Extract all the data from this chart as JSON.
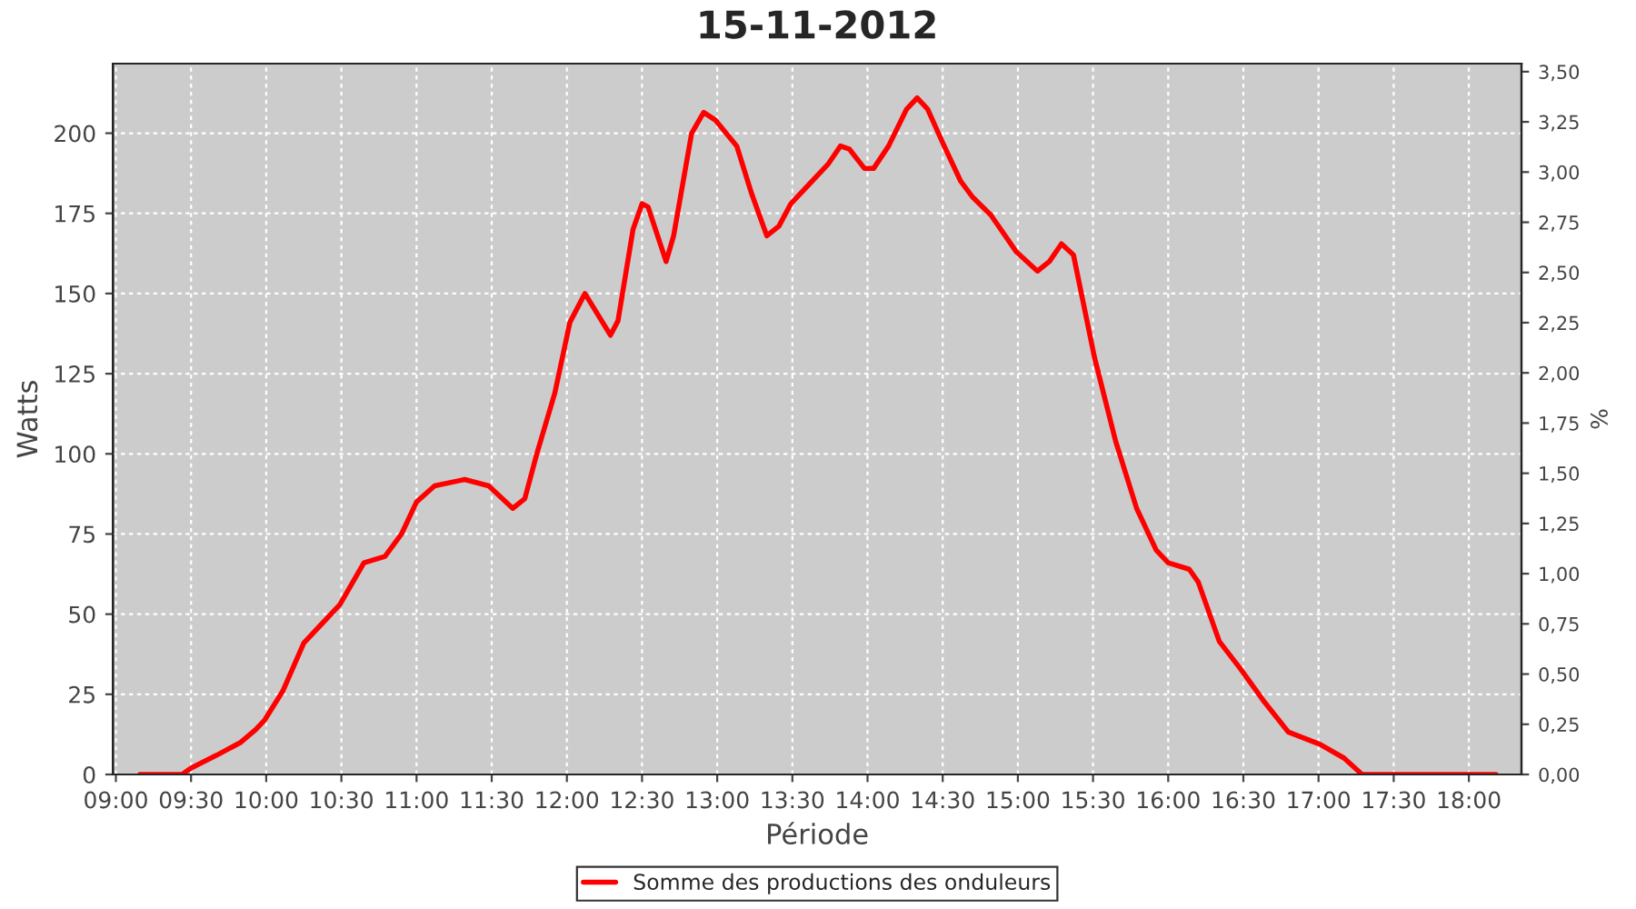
{
  "chart_data": {
    "type": "line",
    "title": "15-11-2012",
    "xlabel": "Période",
    "ylabel": "Watts",
    "y2label": "%",
    "x": [
      9.16,
      9.44,
      9.5,
      9.67,
      9.83,
      9.93,
      9.99,
      10.11,
      10.25,
      10.35,
      10.49,
      10.65,
      10.79,
      10.9,
      11.0,
      11.12,
      11.32,
      11.48,
      11.64,
      11.72,
      11.8,
      11.92,
      12.02,
      12.12,
      12.29,
      12.34,
      12.44,
      12.5,
      12.54,
      12.66,
      12.71,
      12.83,
      12.91,
      12.99,
      13.13,
      13.23,
      13.33,
      13.41,
      13.49,
      13.61,
      13.74,
      13.82,
      13.88,
      13.98,
      14.04,
      14.14,
      14.26,
      14.33,
      14.4,
      14.5,
      14.62,
      14.7,
      14.82,
      14.99,
      15.13,
      15.21,
      15.29,
      15.37,
      15.51,
      15.65,
      15.79,
      15.92,
      16.0,
      16.14,
      16.2,
      16.34,
      16.48,
      16.64,
      16.8,
      17.01,
      17.17,
      17.29,
      18.18
    ],
    "series": [
      {
        "name": "Somme des productions des onduleurs",
        "color": "#ff0000",
        "values": [
          0,
          0,
          2,
          6,
          10,
          14,
          17,
          26,
          41,
          46,
          53,
          66,
          68,
          75,
          85,
          90,
          92,
          90,
          83,
          86,
          100,
          119,
          141,
          150,
          137,
          141.5,
          170,
          178,
          177,
          160,
          168,
          200,
          206.5,
          204,
          196,
          181,
          168,
          171,
          178,
          184,
          190.5,
          196,
          195,
          189,
          189,
          196,
          207.5,
          211,
          207.5,
          197,
          185,
          180,
          174.5,
          163,
          157,
          160,
          165.5,
          162,
          130,
          104,
          83,
          70,
          66,
          64,
          60,
          41.5,
          33,
          22.6,
          13.2,
          9.4,
          5.1,
          0,
          0
        ]
      }
    ],
    "xlim": [
      8.98,
      18.35
    ],
    "xticks": [
      {
        "value": 9,
        "label": "09:00"
      },
      {
        "value": 9.5,
        "label": "09:30"
      },
      {
        "value": 10,
        "label": "10:00"
      },
      {
        "value": 10.5,
        "label": "10:30"
      },
      {
        "value": 11,
        "label": "11:00"
      },
      {
        "value": 11.5,
        "label": "11:30"
      },
      {
        "value": 12,
        "label": "12:00"
      },
      {
        "value": 12.5,
        "label": "12:30"
      },
      {
        "value": 13,
        "label": "13:00"
      },
      {
        "value": 13.5,
        "label": "13:30"
      },
      {
        "value": 14,
        "label": "14:00"
      },
      {
        "value": 14.5,
        "label": "14:30"
      },
      {
        "value": 15,
        "label": "15:00"
      },
      {
        "value": 15.5,
        "label": "15:30"
      },
      {
        "value": 16,
        "label": "16:00"
      },
      {
        "value": 16.5,
        "label": "16:30"
      },
      {
        "value": 17,
        "label": "17:00"
      },
      {
        "value": 17.5,
        "label": "17:30"
      },
      {
        "value": 18,
        "label": "18:00"
      }
    ],
    "ylim": [
      0,
      221.7
    ],
    "yticks": [
      0,
      25,
      50,
      75,
      100,
      125,
      150,
      175,
      200
    ],
    "y2lim": [
      0,
      3.54
    ],
    "y2ticks": [
      {
        "value": 0,
        "label": "0,00"
      },
      {
        "value": 0.25,
        "label": "0,25"
      },
      {
        "value": 0.5,
        "label": "0,50"
      },
      {
        "value": 0.75,
        "label": "0,75"
      },
      {
        "value": 1,
        "label": "1,00"
      },
      {
        "value": 1.25,
        "label": "1,25"
      },
      {
        "value": 1.5,
        "label": "1,50"
      },
      {
        "value": 1.75,
        "label": "1,75"
      },
      {
        "value": 2,
        "label": "2,00"
      },
      {
        "value": 2.25,
        "label": "2,25"
      },
      {
        "value": 2.5,
        "label": "2,50"
      },
      {
        "value": 2.75,
        "label": "2,75"
      },
      {
        "value": 3,
        "label": "3,00"
      },
      {
        "value": 3.25,
        "label": "3,25"
      },
      {
        "value": 3.5,
        "label": "3,50"
      }
    ],
    "grid": true,
    "legend": "bottom",
    "line_style": "solid",
    "marker": "none"
  }
}
